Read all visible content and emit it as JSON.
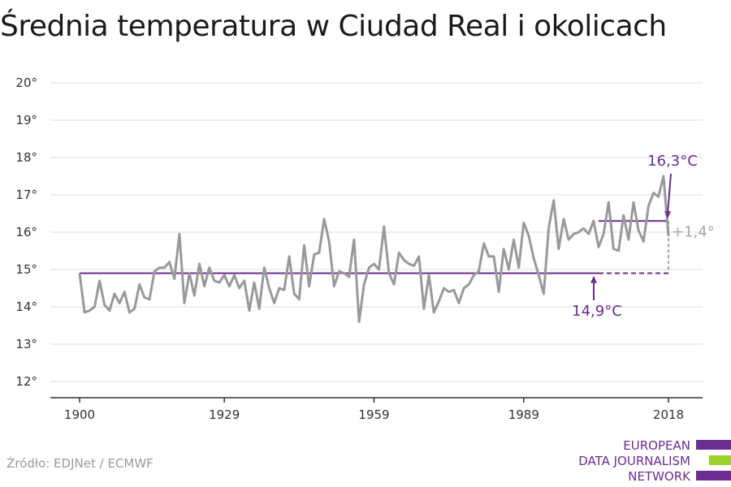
{
  "title": "Średnia temperatura w Ciudad Real i okolicach",
  "source": "Źródło: EDJNet / ECMWF",
  "logo": {
    "line1": "EUROPEAN",
    "line2": "DATA JOURNALISM",
    "line3": "NETWORK"
  },
  "colors": {
    "series": "#999999",
    "accent": "#6b2d91",
    "delta": "#a6a6a6",
    "logo_green": "#9bd22e"
  },
  "chart_data": {
    "type": "line",
    "title": "Średnia temperatura w Ciudad Real i okolicach",
    "xlabel": "",
    "ylabel": "",
    "xlim": [
      1900,
      2018
    ],
    "ylim": [
      12,
      20
    ],
    "x_ticks": [
      1900,
      1929,
      1959,
      1989,
      2018
    ],
    "y_ticks": [
      12,
      13,
      14,
      15,
      16,
      17,
      18,
      19,
      20
    ],
    "y_tick_labels": [
      "12°",
      "13°",
      "14°",
      "15°",
      "16°",
      "17°",
      "18°",
      "19°",
      "20°"
    ],
    "grid": true,
    "series": [
      {
        "x": [
          1900,
          1901,
          1902,
          1903,
          1904,
          1905,
          1906,
          1907,
          1908,
          1909,
          1910,
          1911,
          1912,
          1913,
          1914,
          1915,
          1916,
          1917,
          1918,
          1919,
          1920,
          1921,
          1922,
          1923,
          1924,
          1925,
          1926,
          1927,
          1928,
          1929,
          1930,
          1931,
          1932,
          1933,
          1934,
          1935,
          1936,
          1937,
          1938,
          1939,
          1940,
          1941,
          1942,
          1943,
          1944,
          1945,
          1946,
          1947,
          1948,
          1949,
          1950,
          1951,
          1952,
          1953,
          1954,
          1955,
          1956,
          1957,
          1958,
          1959,
          1960,
          1961,
          1962,
          1963,
          1964,
          1965,
          1966,
          1967,
          1968,
          1969,
          1970,
          1971,
          1972,
          1973,
          1974,
          1975,
          1976,
          1977,
          1978,
          1979,
          1980,
          1981,
          1982,
          1983,
          1984,
          1985,
          1986,
          1987,
          1988,
          1989,
          1990,
          1991,
          1992,
          1993,
          1994,
          1995,
          1996,
          1997,
          1998,
          1999,
          2000,
          2001,
          2002,
          2003,
          2004,
          2005,
          2006,
          2007,
          2008,
          2009,
          2010,
          2011,
          2012,
          2013,
          2014,
          2015,
          2016,
          2017,
          2018
        ],
        "values": [
          14.9,
          13.85,
          13.9,
          14.0,
          14.7,
          14.05,
          13.9,
          14.35,
          14.1,
          14.4,
          13.85,
          13.95,
          14.6,
          14.25,
          14.2,
          14.95,
          15.05,
          15.05,
          15.2,
          14.75,
          15.95,
          14.1,
          14.9,
          14.3,
          15.15,
          14.55,
          15.05,
          14.7,
          14.65,
          14.85,
          14.55,
          14.85,
          14.5,
          14.7,
          13.9,
          14.65,
          13.95,
          15.05,
          14.5,
          14.1,
          14.5,
          14.45,
          15.35,
          14.35,
          14.2,
          15.65,
          14.55,
          15.4,
          15.45,
          16.35,
          15.75,
          14.55,
          14.95,
          14.9,
          14.8,
          15.8,
          13.6,
          14.6,
          15.05,
          15.15,
          15.0,
          16.15,
          14.9,
          14.6,
          15.45,
          15.25,
          15.15,
          15.1,
          15.35,
          13.95,
          14.85,
          13.85,
          14.15,
          14.5,
          14.4,
          14.45,
          14.1,
          14.5,
          14.6,
          14.85,
          14.95,
          15.7,
          15.35,
          15.35,
          14.4,
          15.55,
          15.0,
          15.8,
          15.05,
          16.25,
          15.9,
          15.3,
          14.85,
          14.35,
          16.1,
          16.85,
          15.55,
          16.35,
          15.8,
          15.95,
          16.0,
          16.1,
          15.95,
          16.3,
          15.6,
          15.95,
          16.8,
          15.55,
          15.5,
          16.45,
          15.8,
          16.8,
          16.05,
          15.75,
          16.7,
          17.05,
          16.95,
          17.5,
          15.9
        ]
      }
    ],
    "annotations": {
      "baseline": {
        "value": 14.9,
        "label": "14,9°C",
        "x_start": 1900,
        "x_end": 2004,
        "dashed_to": 2018
      },
      "recent": {
        "value": 16.3,
        "label": "16,3°C",
        "x_start": 2004,
        "x_end": 2018
      },
      "delta": {
        "label": "+1,4°"
      }
    }
  }
}
